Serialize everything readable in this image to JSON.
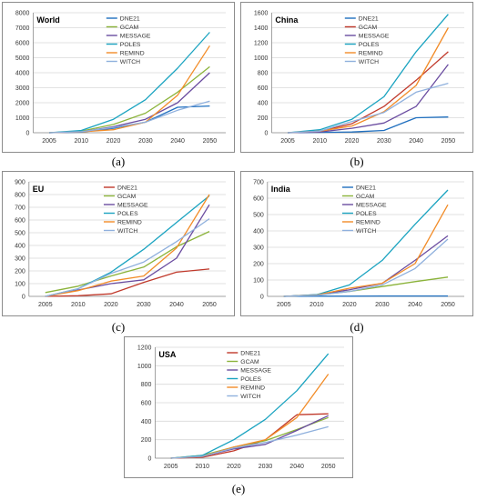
{
  "chart_data": [
    {
      "type": "line",
      "title": "World",
      "caption": "(a)",
      "x": [
        "2005",
        "2010",
        "2020",
        "2030",
        "2040",
        "2050"
      ],
      "ylim": [
        0,
        8000
      ],
      "yticks": [
        0,
        1000,
        2000,
        3000,
        4000,
        5000,
        6000,
        7000,
        8000
      ],
      "legend_position": "top-center",
      "series": [
        {
          "name": "DNE21",
          "color": "#1f6fbf",
          "values": [
            0,
            40,
            300,
            700,
            1700,
            1780
          ]
        },
        {
          "name": "GCAM",
          "color": "#8bb33a",
          "values": [
            0,
            100,
            550,
            1300,
            2700,
            4400
          ]
        },
        {
          "name": "MESSAGE",
          "color": "#6a4ca0",
          "values": [
            0,
            60,
            400,
            900,
            2000,
            4000
          ]
        },
        {
          "name": "POLES",
          "color": "#1aa3c0",
          "values": [
            0,
            150,
            900,
            2200,
            4300,
            6700
          ]
        },
        {
          "name": "REMIND",
          "color": "#f28c28",
          "values": [
            0,
            60,
            200,
            700,
            2500,
            5800
          ]
        },
        {
          "name": "WITCH",
          "color": "#8fb0dd",
          "values": [
            0,
            70,
            350,
            700,
            1500,
            2100
          ]
        }
      ]
    },
    {
      "type": "line",
      "title": "China",
      "caption": "(b)",
      "x": [
        "2005",
        "2010",
        "2020",
        "2030",
        "2040",
        "2050"
      ],
      "ylim": [
        0,
        1600
      ],
      "yticks": [
        0,
        200,
        400,
        600,
        800,
        1000,
        1200,
        1400,
        1600
      ],
      "legend_position": "top-center",
      "series": [
        {
          "name": "DNE21",
          "color": "#1f6fbf",
          "values": [
            0,
            5,
            10,
            30,
            200,
            210
          ]
        },
        {
          "name": "GCAM",
          "color": "#c0392b",
          "values": [
            0,
            20,
            120,
            350,
            700,
            1080
          ]
        },
        {
          "name": "MESSAGE",
          "color": "#6a4ca0",
          "values": [
            0,
            10,
            60,
            130,
            350,
            910
          ]
        },
        {
          "name": "POLES",
          "color": "#1aa3c0",
          "values": [
            0,
            40,
            180,
            480,
            1080,
            1580
          ]
        },
        {
          "name": "REMIND",
          "color": "#f28c28",
          "values": [
            0,
            20,
            90,
            280,
            630,
            1400
          ]
        },
        {
          "name": "WITCH",
          "color": "#8fb0dd",
          "values": [
            0,
            20,
            150,
            270,
            540,
            660
          ]
        }
      ]
    },
    {
      "type": "line",
      "title": "EU",
      "caption": "(c)",
      "x": [
        "2005",
        "2010",
        "2020",
        "2030",
        "2040",
        "2050"
      ],
      "ylim": [
        0,
        900
      ],
      "yticks": [
        0,
        100,
        200,
        300,
        400,
        500,
        600,
        700,
        800,
        900
      ],
      "legend_position": "top-center",
      "series": [
        {
          "name": "DNE21",
          "color": "#c0392b",
          "values": [
            0,
            5,
            20,
            110,
            190,
            215
          ]
        },
        {
          "name": "GCAM",
          "color": "#8bb33a",
          "values": [
            30,
            80,
            160,
            230,
            390,
            510
          ]
        },
        {
          "name": "MESSAGE",
          "color": "#6a4ca0",
          "values": [
            0,
            50,
            100,
            130,
            300,
            720
          ]
        },
        {
          "name": "POLES",
          "color": "#1aa3c0",
          "values": [
            0,
            60,
            190,
            370,
            580,
            790
          ]
        },
        {
          "name": "REMIND",
          "color": "#f28c28",
          "values": [
            0,
            45,
            120,
            160,
            380,
            800
          ]
        },
        {
          "name": "WITCH",
          "color": "#8fb0dd",
          "values": [
            0,
            60,
            180,
            270,
            430,
            610
          ]
        }
      ]
    },
    {
      "type": "line",
      "title": "India",
      "caption": "(d)",
      "x": [
        "2005",
        "2010",
        "2020",
        "2030",
        "2040",
        "2050"
      ],
      "ylim": [
        0,
        700
      ],
      "yticks": [
        0,
        100,
        200,
        300,
        400,
        500,
        600,
        700
      ],
      "legend_position": "top-center",
      "series": [
        {
          "name": "DNE21",
          "color": "#1f6fbf",
          "values": [
            0,
            1,
            1,
            2,
            2,
            2
          ]
        },
        {
          "name": "GCAM",
          "color": "#8bb33a",
          "values": [
            0,
            8,
            30,
            60,
            90,
            118
          ]
        },
        {
          "name": "MESSAGE",
          "color": "#6a4ca0",
          "values": [
            0,
            10,
            40,
            80,
            220,
            370
          ]
        },
        {
          "name": "POLES",
          "color": "#1aa3c0",
          "values": [
            0,
            10,
            70,
            220,
            440,
            650
          ]
        },
        {
          "name": "REMIND",
          "color": "#f28c28",
          "values": [
            0,
            8,
            50,
            80,
            200,
            560
          ]
        },
        {
          "name": "WITCH",
          "color": "#8fb0dd",
          "values": [
            0,
            6,
            30,
            70,
            170,
            350
          ]
        }
      ]
    },
    {
      "type": "line",
      "title": "USA",
      "caption": "(e)",
      "x": [
        "2005",
        "2010",
        "2020",
        "2030",
        "2040",
        "2050"
      ],
      "ylim": [
        0,
        1200
      ],
      "yticks": [
        0,
        200,
        400,
        600,
        800,
        1000,
        1200
      ],
      "legend_position": "top-center",
      "series": [
        {
          "name": "DNE21",
          "color": "#c0392b",
          "values": [
            0,
            10,
            80,
            200,
            470,
            480
          ]
        },
        {
          "name": "GCAM",
          "color": "#8bb33a",
          "values": [
            0,
            30,
            120,
            190,
            310,
            440
          ]
        },
        {
          "name": "MESSAGE",
          "color": "#6a4ca0",
          "values": [
            0,
            20,
            100,
            150,
            300,
            460
          ]
        },
        {
          "name": "POLES",
          "color": "#1aa3c0",
          "values": [
            0,
            30,
            200,
            420,
            730,
            1130
          ]
        },
        {
          "name": "REMIND",
          "color": "#f28c28",
          "values": [
            0,
            20,
            120,
            200,
            440,
            910
          ]
        },
        {
          "name": "WITCH",
          "color": "#8fb0dd",
          "values": [
            0,
            20,
            110,
            170,
            250,
            340
          ]
        }
      ]
    }
  ]
}
